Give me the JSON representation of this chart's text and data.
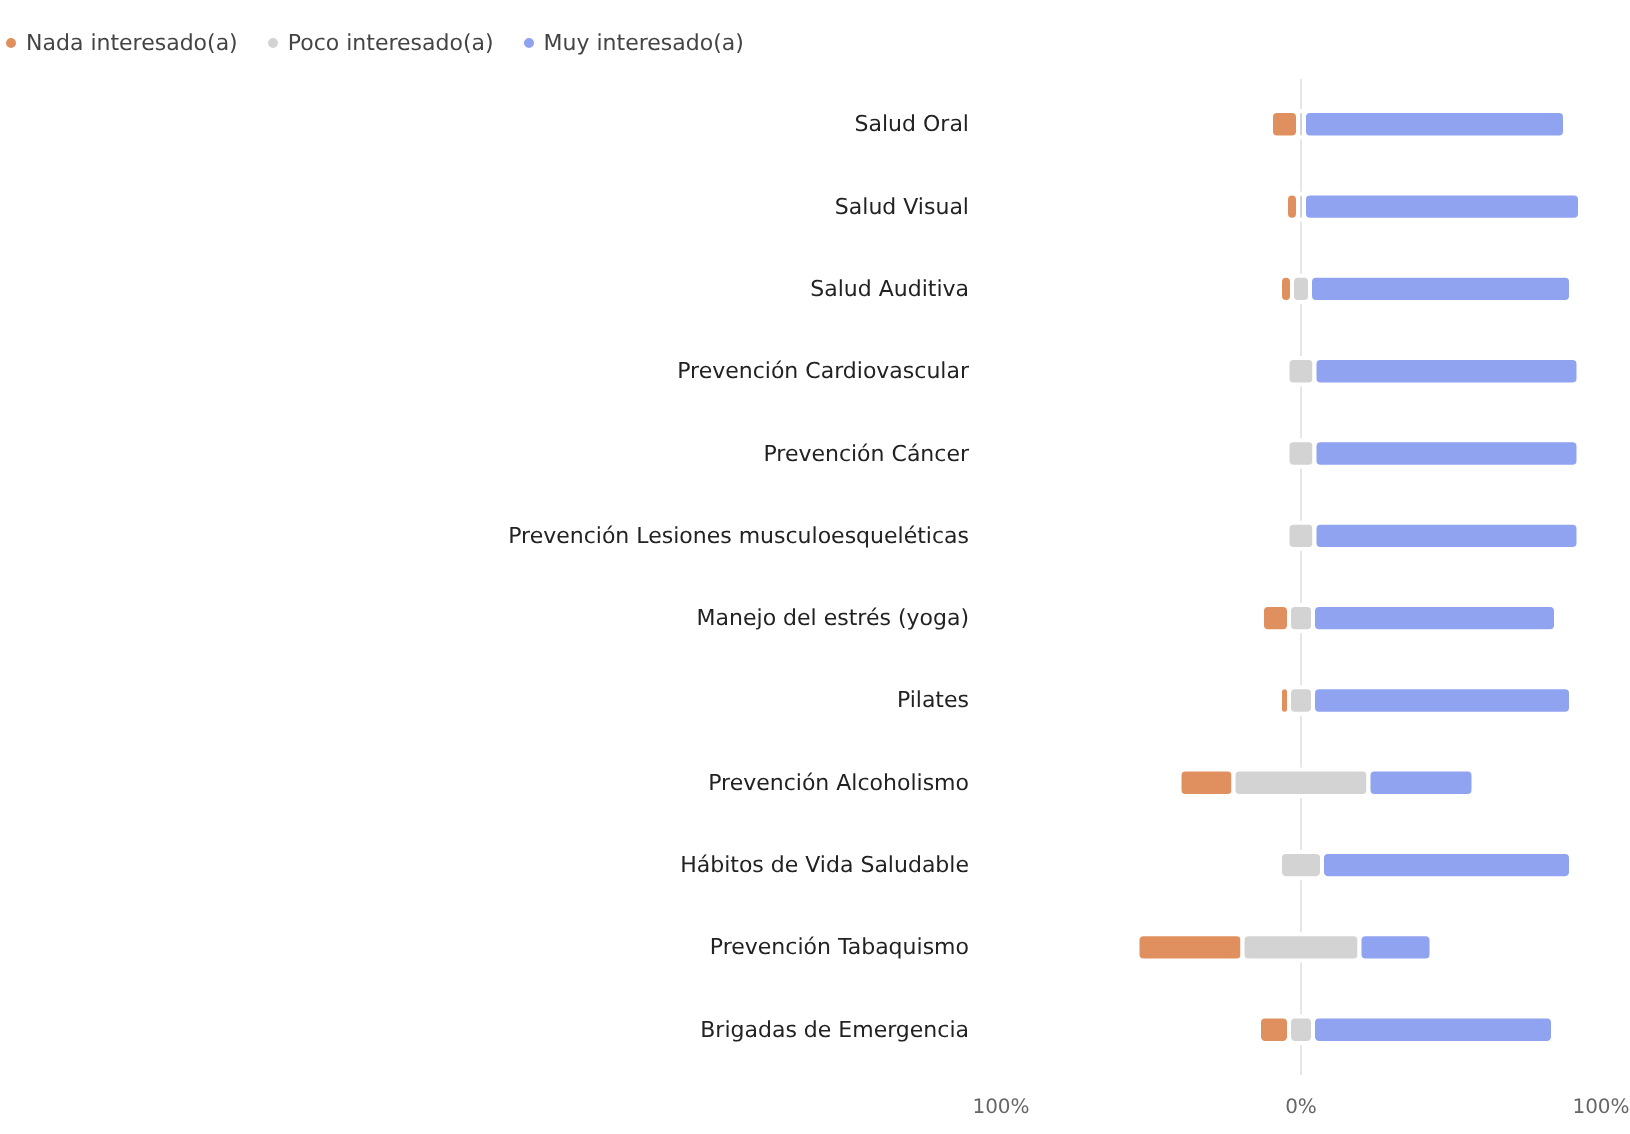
{
  "chart_data": {
    "type": "bar",
    "orientation": "horizontal",
    "categories": [
      "Salud Oral",
      "Salud Visual",
      "Salud Auditiva",
      "Prevención Cardiovascular",
      "Prevención Cáncer",
      "Prevención Lesiones musculoesqueléticas",
      "Manejo del estrés (yoga)",
      "Pilates",
      "Prevención Alcoholismo",
      "Hábitos de Vida Saludable",
      "Prevención Tabaquismo",
      "Brigadas de Emergencia"
    ],
    "series": [
      {
        "name": "Nada interesado(a)",
        "color": "#e0905f",
        "values": [
          9,
          4,
          4,
          0,
          0,
          0,
          9,
          3,
          18,
          0,
          35,
          10
        ],
        "base": [
          -10,
          -5,
          -7,
          null,
          null,
          null,
          -13,
          -7,
          -40.5,
          null,
          -54.5,
          -14
        ]
      },
      {
        "name": "Poco interesado(a)",
        "color": "#d3d3d3",
        "values": [
          2,
          2,
          6,
          9,
          9,
          9,
          8,
          8,
          45,
          14,
          39,
          8
        ],
        "base": [
          -1,
          -1,
          -3,
          -4.5,
          -4.5,
          -4.5,
          -4,
          -4,
          -22.5,
          -7,
          -19.5,
          -4
        ]
      },
      {
        "name": "Muy interesado(a)",
        "color": "#8fa3f0",
        "values": [
          87,
          92,
          87,
          88,
          88,
          88,
          81,
          86,
          35,
          83,
          24,
          80
        ],
        "base": [
          1,
          1,
          3,
          4.5,
          4.5,
          4.5,
          4,
          4,
          22.5,
          7,
          19.5,
          4
        ]
      }
    ],
    "xlim": [
      -100,
      100
    ],
    "xticks": [
      {
        "value": -100,
        "label": "100%"
      },
      {
        "value": 0,
        "label": "0%"
      },
      {
        "value": 100,
        "label": "100%"
      }
    ],
    "grid": "x",
    "legend": "top left",
    "marker": "circle"
  }
}
